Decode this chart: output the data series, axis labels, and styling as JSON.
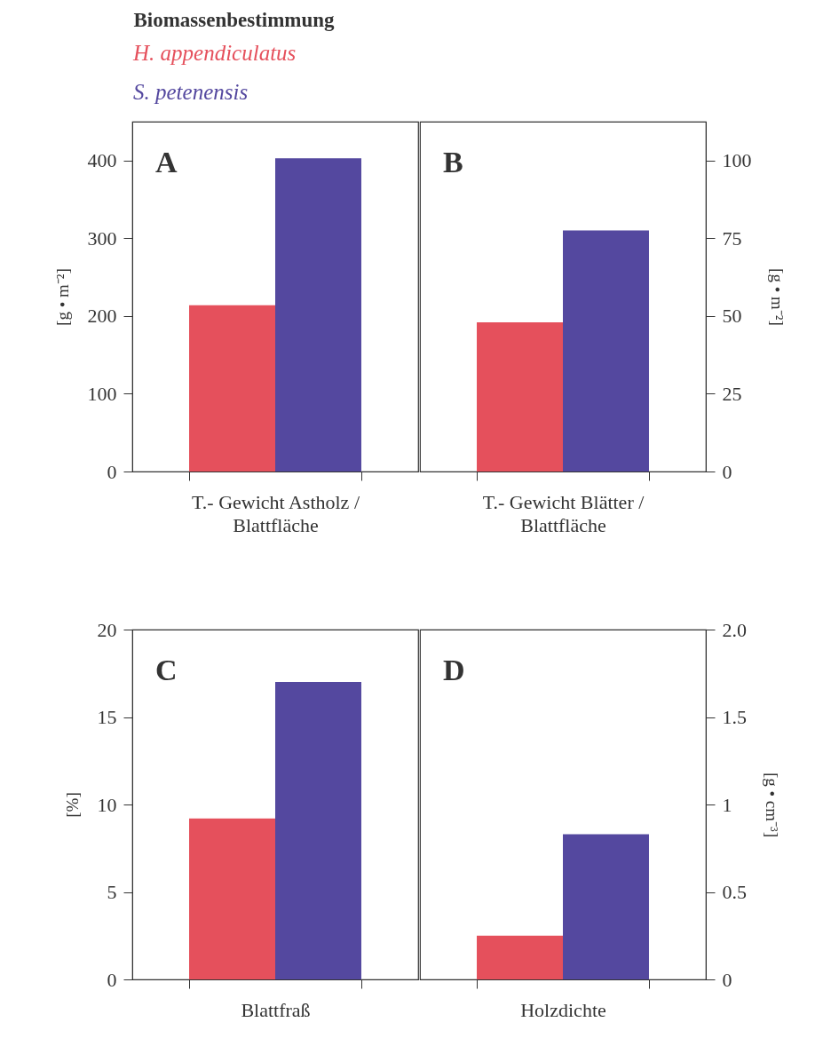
{
  "chart_data": [
    {
      "type": "bar",
      "title": "Biomassenbestimmung",
      "legend": "top left",
      "annotations": [
        "A"
      ],
      "categories": [
        "T.- Gewicht Astholz / Blattfläche"
      ],
      "ylabel": "[g • m⁻²]",
      "ylim": [
        0,
        450
      ],
      "yticks": [
        0,
        100,
        200,
        300,
        400
      ],
      "series": [
        {
          "name": "H. appendiculatus",
          "color": "#e5505c",
          "values": [
            214
          ]
        },
        {
          "name": "S. petenensis",
          "color": "#54489f",
          "values": [
            403
          ]
        }
      ]
    },
    {
      "type": "bar",
      "annotations": [
        "B"
      ],
      "categories": [
        "T.- Gewicht Blätter / Blattfläche"
      ],
      "y2label": "[g • m⁻²]",
      "y2lim": [
        0,
        112.5
      ],
      "y2ticks": [
        0,
        25,
        50,
        75,
        100
      ],
      "series": [
        {
          "color": "#e5505c",
          "values": [
            48
          ],
          "axis": "y2"
        },
        {
          "color": "#54489f",
          "values": [
            77.5
          ],
          "axis": "y2"
        }
      ]
    },
    {
      "type": "bar",
      "annotations": [
        "C"
      ],
      "categories": [
        "Blattfraß"
      ],
      "ylabel": "[%]",
      "ylim": [
        0,
        20
      ],
      "yticks": [
        0,
        5,
        10,
        15,
        20
      ],
      "series": [
        {
          "color": "#e5505c",
          "values": [
            9.2
          ]
        },
        {
          "color": "#54489f",
          "values": [
            17
          ]
        }
      ]
    },
    {
      "type": "bar",
      "annotations": [
        "D"
      ],
      "categories": [
        "Holzdichte"
      ],
      "y2label": "[g • cm⁻³]",
      "y2lim": [
        0,
        2
      ],
      "y2ticks": [
        0,
        0.5,
        1,
        1.5,
        {
          "value": 2,
          "label": "2.0"
        }
      ],
      "series": [
        {
          "color": "#e5505c",
          "values": [
            0.25
          ],
          "axis": "y2"
        },
        {
          "color": "#54489f",
          "values": [
            0.83
          ],
          "axis": "y2"
        }
      ]
    }
  ]
}
